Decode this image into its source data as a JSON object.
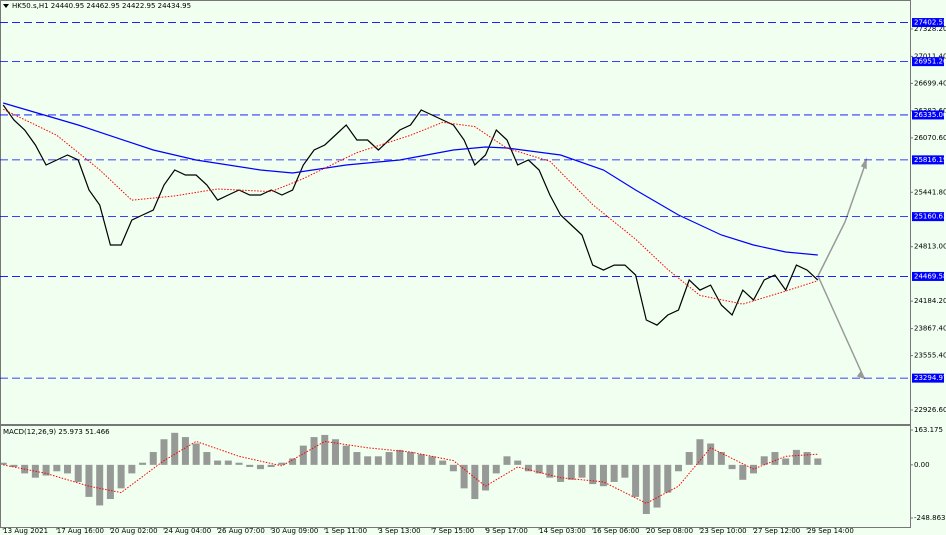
{
  "chart_data": [
    {
      "type": "line",
      "title": "HK50.s,H1  24440.95 24462.95 24422.95 24434.95",
      "ylim": [
        22765,
        27663
      ],
      "xlim": [
        -0.3,
        84.6
      ],
      "yticks": [
        {
          "value": 27328.2,
          "label": "27328.20"
        },
        {
          "value": 27011.4,
          "label": "27011.40"
        },
        {
          "value": 26699.4,
          "label": "26699.40"
        },
        {
          "value": 26382.6,
          "label": "26382.60"
        },
        {
          "value": 26070.6,
          "label": "26070.60"
        },
        {
          "value": 25441.8,
          "label": "25441.80"
        },
        {
          "value": 24813,
          "label": "24813.00"
        },
        {
          "value": 24184.2,
          "label": "24184.20"
        },
        {
          "value": 23867.4,
          "label": "23867.40"
        },
        {
          "value": 23555.4,
          "label": "23555.40"
        },
        {
          "value": 22926.6,
          "label": "22926.60"
        }
      ],
      "xticks": [
        {
          "value": 0,
          "label": "13 Aug 2021"
        },
        {
          "value": 5,
          "label": "17 Aug 16:00"
        },
        {
          "value": 10,
          "label": "20 Aug 02:00"
        },
        {
          "value": 15,
          "label": "24 Aug 04:00"
        },
        {
          "value": 20,
          "label": "26 Aug 07:00"
        },
        {
          "value": 25,
          "label": "30 Aug 09:00"
        },
        {
          "value": 30,
          "label": "1 Sep 11:00"
        },
        {
          "value": 35,
          "label": "3 Sep 13:00"
        },
        {
          "value": 40,
          "label": "7 Sep 15:00"
        },
        {
          "value": 45,
          "label": "9 Sep 17:00"
        },
        {
          "value": 50,
          "label": "14 Sep 03:00"
        },
        {
          "value": 55,
          "label": "16 Sep 06:00"
        },
        {
          "value": 60,
          "label": "20 Sep 08:00"
        },
        {
          "value": 65,
          "label": "23 Sep 10:00"
        },
        {
          "value": 70,
          "label": "27 Sep 12:00"
        },
        {
          "value": 75,
          "label": "29 Sep 14:00"
        }
      ],
      "levels": [
        {
          "value": 27402.55,
          "label": "27402.55"
        },
        {
          "value": 26951.26,
          "label": "26951.26"
        },
        {
          "value": 26335,
          "label": "26335.00"
        },
        {
          "value": 25816.19,
          "label": "25816.19"
        },
        {
          "value": 25160.63,
          "label": "25160.63"
        },
        {
          "value": 24469.58,
          "label": "24469.58"
        },
        {
          "value": 23294.97,
          "label": "23294.97"
        }
      ],
      "level_color": "#0000ff",
      "series": [
        {
          "color": "#000000",
          "style": "solid",
          "values": [
            26450,
            26277,
            26161,
            25988,
            25757,
            25815,
            25872,
            25815,
            25468,
            25295,
            24833,
            24833,
            25121,
            25179,
            25237,
            25526,
            25699,
            25641,
            25641,
            25526,
            25352,
            25410,
            25468,
            25410,
            25410,
            25468,
            25410,
            25468,
            25757,
            25930,
            25988,
            26104,
            26219,
            26046,
            26046,
            25930,
            26046,
            26161,
            26219,
            26392,
            26334,
            26277,
            26219,
            26046,
            25757,
            25872,
            26161,
            26046,
            25757,
            25815,
            25699,
            25410,
            25179,
            25064,
            24948,
            24601,
            24543,
            24601,
            24601,
            24486,
            23966,
            23908,
            24024,
            24082,
            24428,
            24312,
            24370,
            24139,
            24024,
            24312,
            24197,
            24428,
            24486,
            24312,
            24601,
            24543,
            24428
          ]
        },
        {
          "color": "#0000ff",
          "style": "solid",
          "x": [
            0,
            7,
            14,
            18,
            24,
            27,
            32,
            37,
            42,
            45,
            47,
            52,
            56,
            59,
            63,
            67,
            70,
            73,
            76
          ],
          "values": [
            26473,
            26219,
            25930,
            25815,
            25699,
            25664,
            25757,
            25815,
            25930,
            25965,
            25953,
            25872,
            25699,
            25468,
            25179,
            24948,
            24833,
            24752,
            24717
          ]
        },
        {
          "color": "#ff0000",
          "style": "dotted",
          "x": [
            0,
            5,
            9,
            12,
            16,
            20,
            25,
            28,
            33,
            38,
            41,
            44,
            47,
            51,
            55,
            59,
            62,
            65,
            69,
            73,
            76
          ],
          "values": [
            26400,
            26100,
            25700,
            25350,
            25400,
            25480,
            25450,
            25600,
            25900,
            26100,
            26250,
            26200,
            25950,
            25800,
            25300,
            24900,
            24550,
            24250,
            24150,
            24300,
            24420
          ]
        }
      ]
    },
    {
      "type": "histogram-line",
      "title": "MACD(12,26,9) 25.973 51.466",
      "ylim": [
        -291,
        186.6
      ],
      "yticks": [
        163.175,
        {
          "value": 0,
          "label": "0.00"
        },
        -248.863
      ],
      "series": [
        {
          "color": "#808080",
          "style": "bars",
          "values": [
            10,
            -10,
            -40,
            -60,
            -50,
            -30,
            -40,
            -80,
            -150,
            -190,
            -160,
            -110,
            -40,
            10,
            60,
            120,
            150,
            130,
            100,
            60,
            20,
            20,
            10,
            -10,
            -20,
            -10,
            10,
            30,
            90,
            130,
            140,
            120,
            90,
            60,
            40,
            40,
            60,
            70,
            60,
            50,
            40,
            20,
            -30,
            -110,
            -160,
            -120,
            -40,
            40,
            20,
            -30,
            -40,
            -60,
            -80,
            -70,
            -60,
            -90,
            -100,
            -80,
            -60,
            -150,
            -230,
            -200,
            -130,
            -30,
            60,
            120,
            100,
            60,
            -20,
            -70,
            -40,
            40,
            60,
            30,
            70,
            60,
            30
          ]
        },
        {
          "color": "#ff0000",
          "style": "dotted",
          "x": [
            0,
            4,
            8,
            11,
            15,
            18,
            22,
            26,
            30,
            34,
            38,
            42,
            45,
            48,
            52,
            56,
            60,
            63,
            66,
            70,
            73,
            76
          ],
          "values": [
            0,
            -40,
            -100,
            -130,
            20,
            110,
            40,
            -5,
            110,
            80,
            60,
            20,
            -100,
            -10,
            -60,
            -80,
            -180,
            -100,
            80,
            -20,
            40,
            50
          ]
        }
      ]
    }
  ]
}
